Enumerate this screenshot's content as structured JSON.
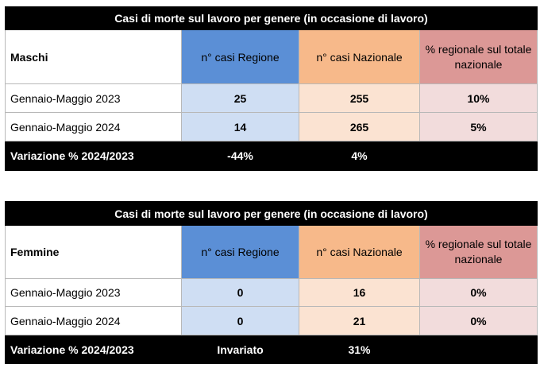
{
  "tables": [
    {
      "title": "Casi di morte sul lavoro per genere (in occasione di lavoro)",
      "group_label": "Maschi",
      "col_regione": "n° casi Regione",
      "col_nazionale": "n° casi Nazionale",
      "col_percentuale": "% regionale sul totale nazionale",
      "rows": [
        {
          "period": "Gennaio-Maggio 2023",
          "regione": "25",
          "nazionale": "255",
          "percentuale": "10%"
        },
        {
          "period": "Gennaio-Maggio 2024",
          "regione": "14",
          "nazionale": "265",
          "percentuale": "5%"
        }
      ],
      "variation": {
        "label": "Variazione % 2024/2023",
        "regione": "-44%",
        "nazionale": "4%",
        "percentuale": ""
      }
    },
    {
      "title": "Casi di morte sul lavoro per genere (in occasione di lavoro)",
      "group_label": "Femmine",
      "col_regione": "n° casi Regione",
      "col_nazionale": "n° casi Nazionale",
      "col_percentuale": "% regionale sul totale nazionale",
      "rows": [
        {
          "period": "Gennaio-Maggio 2023",
          "regione": "0",
          "nazionale": "16",
          "percentuale": "0%"
        },
        {
          "period": "Gennaio-Maggio 2024",
          "regione": "0",
          "nazionale": "21",
          "percentuale": "0%"
        }
      ],
      "variation": {
        "label": "Variazione % 2024/2023",
        "regione": "Invariato",
        "nazionale": "31%",
        "percentuale": ""
      }
    }
  ]
}
